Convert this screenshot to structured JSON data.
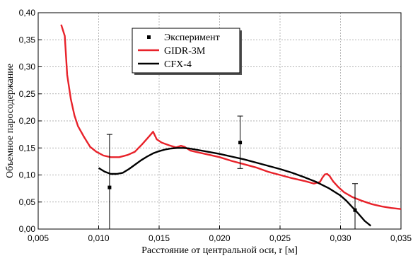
{
  "chart_data": {
    "type": "line",
    "xlabel": "Расстояние от центральной оси, r [м]",
    "ylabel": "Объемное паросодержание",
    "xlim": [
      0.005,
      0.035
    ],
    "ylim": [
      0.0,
      0.4
    ],
    "x_ticks": [
      0.005,
      0.01,
      0.015,
      0.02,
      0.025,
      0.03,
      0.035
    ],
    "x_tick_labels": [
      "0,005",
      "0,010",
      "0,015",
      "0,020",
      "0,025",
      "0,030",
      "0,035"
    ],
    "y_ticks": [
      0.0,
      0.05,
      0.1,
      0.15,
      0.2,
      0.25,
      0.3,
      0.35,
      0.4
    ],
    "y_tick_labels": [
      "0,00",
      "0,05",
      "0,10",
      "0,15",
      "0,20",
      "0,25",
      "0,30",
      "0,35",
      "0,40"
    ],
    "grid": true,
    "legend_position": "top-center",
    "series": [
      {
        "name": "Эксперимент",
        "kind": "errorbar",
        "color": "#000000",
        "points": [
          {
            "x": 0.0109,
            "y": 0.077,
            "lo": 0.0,
            "hi": 0.175
          },
          {
            "x": 0.0217,
            "y": 0.16,
            "lo": 0.112,
            "hi": 0.209
          },
          {
            "x": 0.0312,
            "y": 0.035,
            "lo": 0.0,
            "hi": 0.084
          }
        ]
      },
      {
        "name": "GIDR-3M",
        "kind": "line",
        "color": "#e8222a",
        "x": [
          0.0069,
          0.0072,
          0.0074,
          0.0077,
          0.008,
          0.0083,
          0.0088,
          0.0093,
          0.0098,
          0.0104,
          0.011,
          0.0117,
          0.0124,
          0.013,
          0.0136,
          0.0142,
          0.0145,
          0.0148,
          0.0152,
          0.0158,
          0.0164,
          0.0168,
          0.0171,
          0.0176,
          0.0182,
          0.019,
          0.02,
          0.021,
          0.022,
          0.023,
          0.024,
          0.025,
          0.026,
          0.027,
          0.0278,
          0.0283,
          0.0285,
          0.0287,
          0.0289,
          0.0291,
          0.0294,
          0.0298,
          0.0303,
          0.031,
          0.0318,
          0.0326,
          0.0334,
          0.0342,
          0.035
        ],
        "y": [
          0.378,
          0.357,
          0.285,
          0.24,
          0.21,
          0.19,
          0.17,
          0.152,
          0.143,
          0.136,
          0.133,
          0.133,
          0.137,
          0.143,
          0.157,
          0.172,
          0.18,
          0.166,
          0.16,
          0.155,
          0.151,
          0.154,
          0.152,
          0.145,
          0.142,
          0.138,
          0.133,
          0.126,
          0.12,
          0.114,
          0.106,
          0.1,
          0.094,
          0.089,
          0.084,
          0.087,
          0.095,
          0.101,
          0.102,
          0.098,
          0.088,
          0.078,
          0.068,
          0.059,
          0.052,
          0.046,
          0.042,
          0.039,
          0.037
        ]
      },
      {
        "name": "CFX-4",
        "kind": "line",
        "color": "#000000",
        "x": [
          0.01,
          0.0105,
          0.011,
          0.0115,
          0.012,
          0.0125,
          0.013,
          0.0135,
          0.014,
          0.0145,
          0.015,
          0.0155,
          0.016,
          0.0165,
          0.017,
          0.0175,
          0.018,
          0.019,
          0.02,
          0.021,
          0.022,
          0.023,
          0.024,
          0.025,
          0.026,
          0.027,
          0.028,
          0.029,
          0.03,
          0.0305,
          0.031,
          0.0315,
          0.032,
          0.0325
        ],
        "y": [
          0.113,
          0.106,
          0.102,
          0.102,
          0.104,
          0.111,
          0.119,
          0.127,
          0.134,
          0.14,
          0.144,
          0.147,
          0.149,
          0.15,
          0.15,
          0.149,
          0.147,
          0.143,
          0.139,
          0.134,
          0.129,
          0.123,
          0.117,
          0.111,
          0.104,
          0.096,
          0.087,
          0.076,
          0.062,
          0.052,
          0.04,
          0.028,
          0.015,
          0.006
        ]
      }
    ]
  }
}
